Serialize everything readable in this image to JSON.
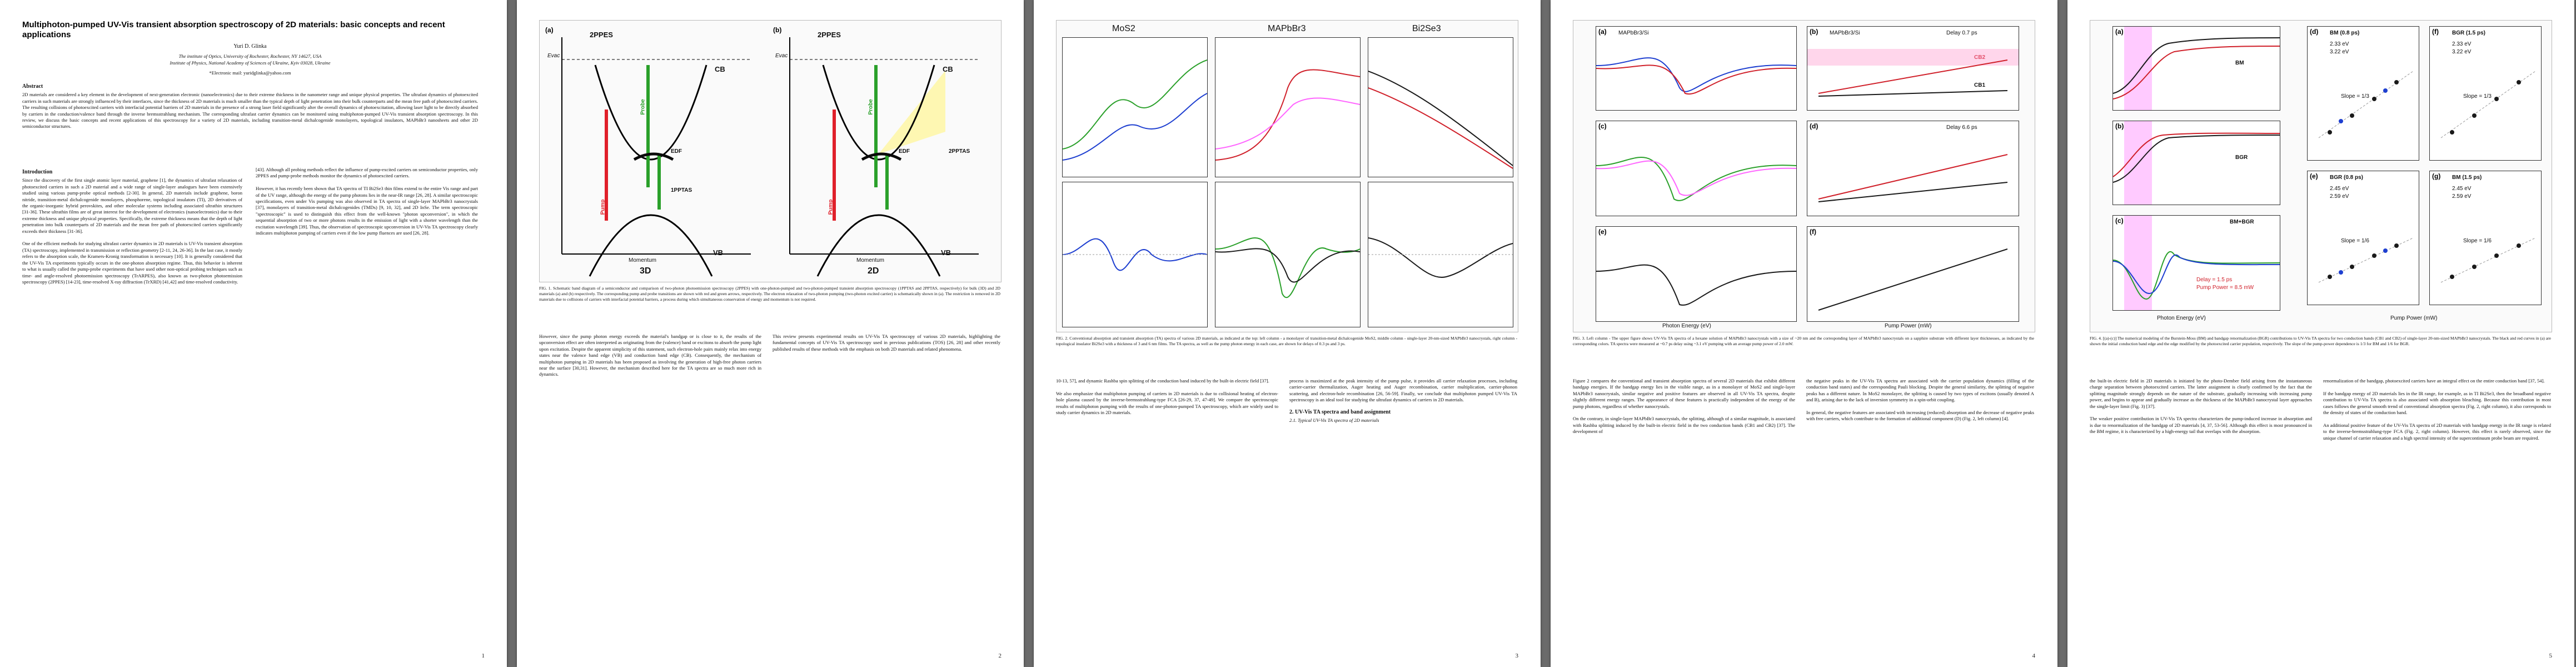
{
  "paper": {
    "title": "Multiphoton-pumped UV-Vis transient absorption spectroscopy of 2D materials: basic concepts and recent applications",
    "author": "Yuri D. Glinka",
    "affil1": "The institute of Optics, University of Rochester, Rochester, NY 14627, USA",
    "affil2": "Institute of Physics, National Academy of Sciences of Ukraine, Kyiv 03028, Ukraine",
    "email": "*Electronic mail: yuridglinka@yahoo.com",
    "abstract_head": "Abstract",
    "abstract": "2D materials are considered a key element in the development of next-generation electronic (nanoelectronics) due to their extreme thickness in the nanometer range and unique physical properties. The ultrafast dynamics of photoexcited carriers in such materials are strongly influenced by their interfaces, since the thickness of 2D materials is much smaller than the typical depth of light penetration into their bulk counterparts and the mean free path of photoexcited carriers. The resulting collisions of photoexcited carriers with interfacial potential barriers of 2D materials in the presence of a strong laser field significantly alter the overall dynamics of photoexcitation, allowing laser light to be directly absorbed by carriers in the conduction/valence band through the inverse bremsstrahlung mechanism. The corresponding ultrafast carrier dynamics can be monitored using multiphoton-pumped UV-Vis transient absorption spectroscopy. In this review, we discuss the basic concepts and recent applications of this spectroscopy for a variety of 2D materials, including transition-metal dichalcogenide monolayers, topological insulators, MAPbBr3 nanosheets and other 2D semiconductor structures.",
    "intro_head": "Introduction",
    "intro_p1": "Since the discovery of the first single atomic layer material, graphene [1], the dynamics of ultrafast relaxation of photoexcited carriers in such a 2D material and a wide range of single-layer analogues have been extensively studied using various pump-probe optical methods [2-30]. In general, 2D materials include graphene, boron nitride, transition-metal dichalcogenide monolayers, phosphorene, topological insulators (TI), 2D derivatives of the organic-inorganic hybrid perovskites, and other molecular systems including associated ultrathin structures [31-36]. These ultrathin films are of great interest for the development of electronics (nanoelectronics) due to their extreme thickness and unique physical properties. Specifically, the extreme thickness means that the depth of light penetration into bulk counterparts of 2D materials and the mean free path of photoexcited carriers significantly exceeds their thickness [31-36].",
    "intro_p2": "One of the efficient methods for studying ultrafast carrier dynamics in 2D materials is UV-Vis transient absorption (TA) spectroscopy, implemented in transmission or reflection geometry [2-11, 24, 26-36]. In the last case, it mostly refers to the absorption scale, the Kramers-Kronig transformation is necessary [10]. It is generally considered that the UV-Vis TA experiments typically occurs in the one-photon absorption regime. Thus, this behavior is inherent to what is usually called the pump-probe experiments that have used other non-optical probing techniques such as time- and angle-resolved photoemission spectroscopy (TrARPES), also known as two-photon photoemission spectroscopy (2PPES) [14-23], time-resolved X-ray diffraction (TrXRD) [41,42] and time-resolved conductivity.",
    "col2_p1": "[43]. Although all probing methods reflect the influence of pump-excited carriers on semiconductor properties, only 2PPES and pump-probe methods monitor the dynamics of photoexcited carriers.",
    "col2_p2": "However, it has recently been shown that TA spectra of TI Bi2Se3 thin films extend to the entire Vis range and part of the UV range, although the energy of the pump photons lies in the near-IR range [26, 28]. A similar spectroscopic specifications, even under Vis pumping was also observed in TA spectra of single-layer MAPbBr3 nanocrystals [37], monolayers of transition-metal dichalcogenides (TMDs) [9, 10, 32], and 2D InSe. The term spectroscopic \"spectroscopic\" is used to distinguish this effect from the well-known \"photon upconversion\", in which the sequential absorption of two or more photons results in the emission of light with a shorter wavelength than the excitation wavelength [39]. Thus, the observation of spectroscopic upconversion in UV-Vis TA spectroscopy clearly indicates multiphoton pumping of carriers even if the low pump fluences are used [26, 28].",
    "cap1": "FIG. 1. Schematic band diagram of a semiconductor and comparison of two-photon photoemission spectroscopy (2PPES) with one-photon-pumped and two-photon-pumped transient absorption spectroscopy (1PPTAS and 2PPTAS, respectively) for bulk (3D) and 2D materials (a) and (b) respectively. The corresponding pump and probe transitions are shown with red and green arrows, respectively. The electron relaxation of two-photon pumping (two-photon excited carrier) is schematically shown in (a). The restriction is removed in 2D materials due to collisions of carriers with interfacial potential barriers, a process during which simultaneous conservation of energy and momentum is not required.",
    "col3_p1": "However, since the pump photon energy exceeds the material's bandgap or is close to it, the results of the upconversion effect are often interpreted as originating from the (valence) band or excitons to absorb the pump light upon excitation. Despite the apparent simplicity of this statement, such electron-hole pairs mainly relax into energy states near the valence band edge (VB) and conduction band edge (CB). Consequently, the mechanism of multiphoton pumping in 2D materials has been proposed as involving the generation of high-free photon carriers near the surface [30,31]. However, the mechanism described here for the TA spectra are so much more rich in dynamics.",
    "col3_p2": "This review presents experimental results on UV-Vis TA spectroscopy of various 2D materials, highlighting the fundamental concepts of UV-Vis TA spectroscopy used in previous publications (TOS) [26, 28] and other recently published results of these methods with the emphasis on both 2D materials and related phenomena.",
    "fig1": {
      "a": "(a)",
      "b": "(b)",
      "ppes": "2PPES",
      "evac": "Evac",
      "cb": "CB",
      "vb": "VB",
      "probe": "Probe",
      "pump": "Pump",
      "edf": "EDF",
      "ptas_a": "1PPTAS",
      "ptas_b": "2PPTAS",
      "mom": "Momentum",
      "energy": "Energy",
      "d3": "3D",
      "d2": "2D"
    },
    "fig2_heads": [
      "MoS2",
      "MAPbBr3",
      "Bi2Se3"
    ],
    "fig2_cap": "FIG. 2. Conventional absorption and transient absorption (TA) spectra of various 2D materials, as indicated at the top: left column - a monolayer of transition-metal dichalcogenide MoS2, middle column - single-layer 20-nm-sized MAPbBr3 nanocrystals, right column - topological insulator Bi2Se3 with a thickness of 3 and 6 nm films. The TA spectra, as well as the pump photon energy in each case, are shown for delays of 0.3 ps and 3 ps.",
    "col4_p1": "10-13, 57], and dynamic Rashba spin splitting of the conduction band induced by the built-in electric field [37].",
    "col4_p2": "We also emphasize that multiphoton pumping of carriers in 2D materials is due to collisional heating of electron-hole plasma caused by the inverse-bremsstrahlung-type FCA [26-29, 37, 47-49]. We compare the spectroscopic results of multiphoton pumping with the results of one-photon-pumped TA spectroscopy, which are widely used to study carrier dynamics in 2D materials.",
    "col5_p1": "process is maximized at the peak intensity of the pump pulse, it provides all carrier relaxation processes, including carrier-carrier thermalization, Auger heating and Auger recombination, carrier multiplication, carrier-phonon scattering, and electron-hole recombination [26, 56-59]. Finally, we conclude that multiphoton pumped UV-Vis TA spectroscopy is an ideal tool for studying the ultrafast dynamics of carriers in 2D materials.",
    "sec2_head": "2. UV-Vis TA spectra and band assignment",
    "sec2_sub": "2.1. Typical UV-Vis TA spectra of 2D materials",
    "fig3": {
      "a": "(a)",
      "b": "(b)",
      "c": "(c)",
      "d": "(d)",
      "e": "(e)",
      "f": "(f)",
      "hdr_left": "MAPbBr3/Si",
      "hdr_right": "MAPbBr3/Si",
      "delay1": "Delay 0.7 ps",
      "delay2": "Delay 6.6 ps",
      "cb1": "CB1",
      "cb2": "CB2",
      "photon": "Photon Energy (eV)",
      "layer": "Layer Thickness (nm)",
      "power": "Pump Power (mW)",
      "dOD": "ΔOD (arb. units)",
      "dE": "dE (meV)"
    },
    "fig3_cap": "FIG. 3. Left column - The upper figure shows UV-Vis TA spectra of a hexane solution of MAPbBr3 nanocrystals with a size of ~20 nm and the corresponding layer of MAPbBr3 nanocrystals on a sapphire substrate with different layer thicknesses, as indicated by the corresponding colors. TA spectra were measured at ~0.7 ps delay using ~3.1 eV pumping with an average pump power of 2.0 mW.",
    "col6_p1": "Figure 2 compares the conventional and transient absorption spectra of several 2D materials that exhibit different bandgap energies. If the bandgap energy lies in the visible range, as in a monolayer of MoS2 and single-layer MAPbBr3 nanocrystals, similar negative and positive features are observed in all UV-Vis TA spectra, despite slightly different energy ranges. The appearance of these features is practically independent of the energy of the pump photons, regardless of whether nanocrystals.",
    "col6_p2": "On the contrary, in single-layer MAPbBr3 nanocrystals, the splitting, although of a similar magnitude, is associated with Rashba splitting induced by the built-in electric field in the two conduction bands (CB1 and CB2) [37]. The development of",
    "col7_p1": "the negative peaks in the UV-Vis TA spectra are associated with the carrier population dynamics (filling of the conduction band states) and the corresponding Pauli blocking. Despite the general similarity, the splitting of negative peaks has a different nature. In MoS2 monolayer, the splitting is caused by two types of excitons (usually denoted A and B), arising due to the lack of inversion symmetry in a spin-orbit coupling.",
    "col7_p2": "In general, the negative features are associated with increasing (reduced) absorption and the decrease of negative peaks with free carriers, which contribute to the formation of additional component (D) (Fig. 2, left column) [4].",
    "fig4": {
      "a": "(a)",
      "b": "(b)",
      "c": "(c)",
      "d": "(d)",
      "e": "(e)",
      "f": "(f)",
      "g": "(g)",
      "bm": "BM",
      "bgr": "BGR",
      "bmbgr": "BM+BGR",
      "bm08": "BM (0.8 ps)",
      "bgr08": "BGR (0.8 ps)",
      "bm15": "BM (1.5 ps)",
      "bgr15": "BGR (1.5 ps)",
      "e1": "2.33 eV",
      "e2": "3.22 eV",
      "e3": "2.45 eV",
      "e4": "2.59 eV",
      "s13": "Slope = 1/3",
      "s16": "Slope = 1/6",
      "photon": "Photon Energy (eV)",
      "power": "Pump Power (mW)",
      "mag": "Magnitude of ΔOD (arb. units)",
      "dOD": "ΔOD (arb. units)",
      "legend1": "Delay = 1.5 ps",
      "legend2": "Pump Power = 8.5 mW"
    },
    "fig4_cap": "FIG. 4. [(a)-(c)] The numerical modeling of the Burstein-Moss (BM) and bandgap renormalization (BGR) contributions to UV-Vis TA spectra for two conduction bands (CB1 and CB2) of single-layer 20-nm-sized MAPbBr3 nanocrystals. The black and red curves in (a) are shown the initial conduction band edge and the edge modified by the photoexcited carrier population, respectively. The slope of the pump-power dependence is 1/3 for BM and 1/6 for BGR.",
    "col8_p1": "the built-in electric field in 2D materials is initiated by the photo-Dember field arising from the instantaneous charge separation between photoexcited carriers. The latter assignment is clearly confirmed by the fact that the splitting magnitude strongly depends on the nature of the substrate, gradually increasing with increasing pump power, and begins to appear and gradually increase as the thickness of the MAPbBr3 nanocrystal layer approaches the single-layer limit (Fig. 3) [37].",
    "col8_p2": "The weaker positive contribution in UV-Vis TA spectra characterizes the pump-induced increase in absorption and is due to renormalization of the bandgap of 2D materials [4, 37, 53-56]. Although this effect is most pronounced in the BM regime, it is characterized by a high-energy tail that overlaps with the absorption.",
    "col9_p1": "renormalization of the bandgap, photoexcited carriers have an integral effect on the entire conduction band [37, 54].",
    "col9_p2": "If the bandgap energy of 2D materials lies in the IR range, for example, as in TI Bi2Se3, then the broadband negative contribution to UV-Vis TA spectra is also associated with absorption bleaching. Because this contribution in most cases follows the general smooth trend of conventional absorption spectra (Fig. 2, right column), it also corresponds to the density of states of the conduction band.",
    "col9_p3": "An additional positive feature of the UV-Vis TA spectra of 2D materials with bandgap energy in the IR range is related to the inverse-bremsstrahlung-type FCA (Fig. 2, right column). However, this effect is rarely observed, since the unique channel of carrier relaxation and a high spectral intensity of the supercontinuum probe beam are required.",
    "pages": [
      "1",
      "2",
      "3",
      "4",
      "5"
    ]
  },
  "colors": {
    "pump": "#e0202a",
    "probe": "#2aa02a",
    "edf": "#0a0a0a",
    "cb1": "#1a1a1a",
    "cb2": "#d0202a",
    "band": "#ff66ff",
    "blue": "#1e3fd0"
  }
}
